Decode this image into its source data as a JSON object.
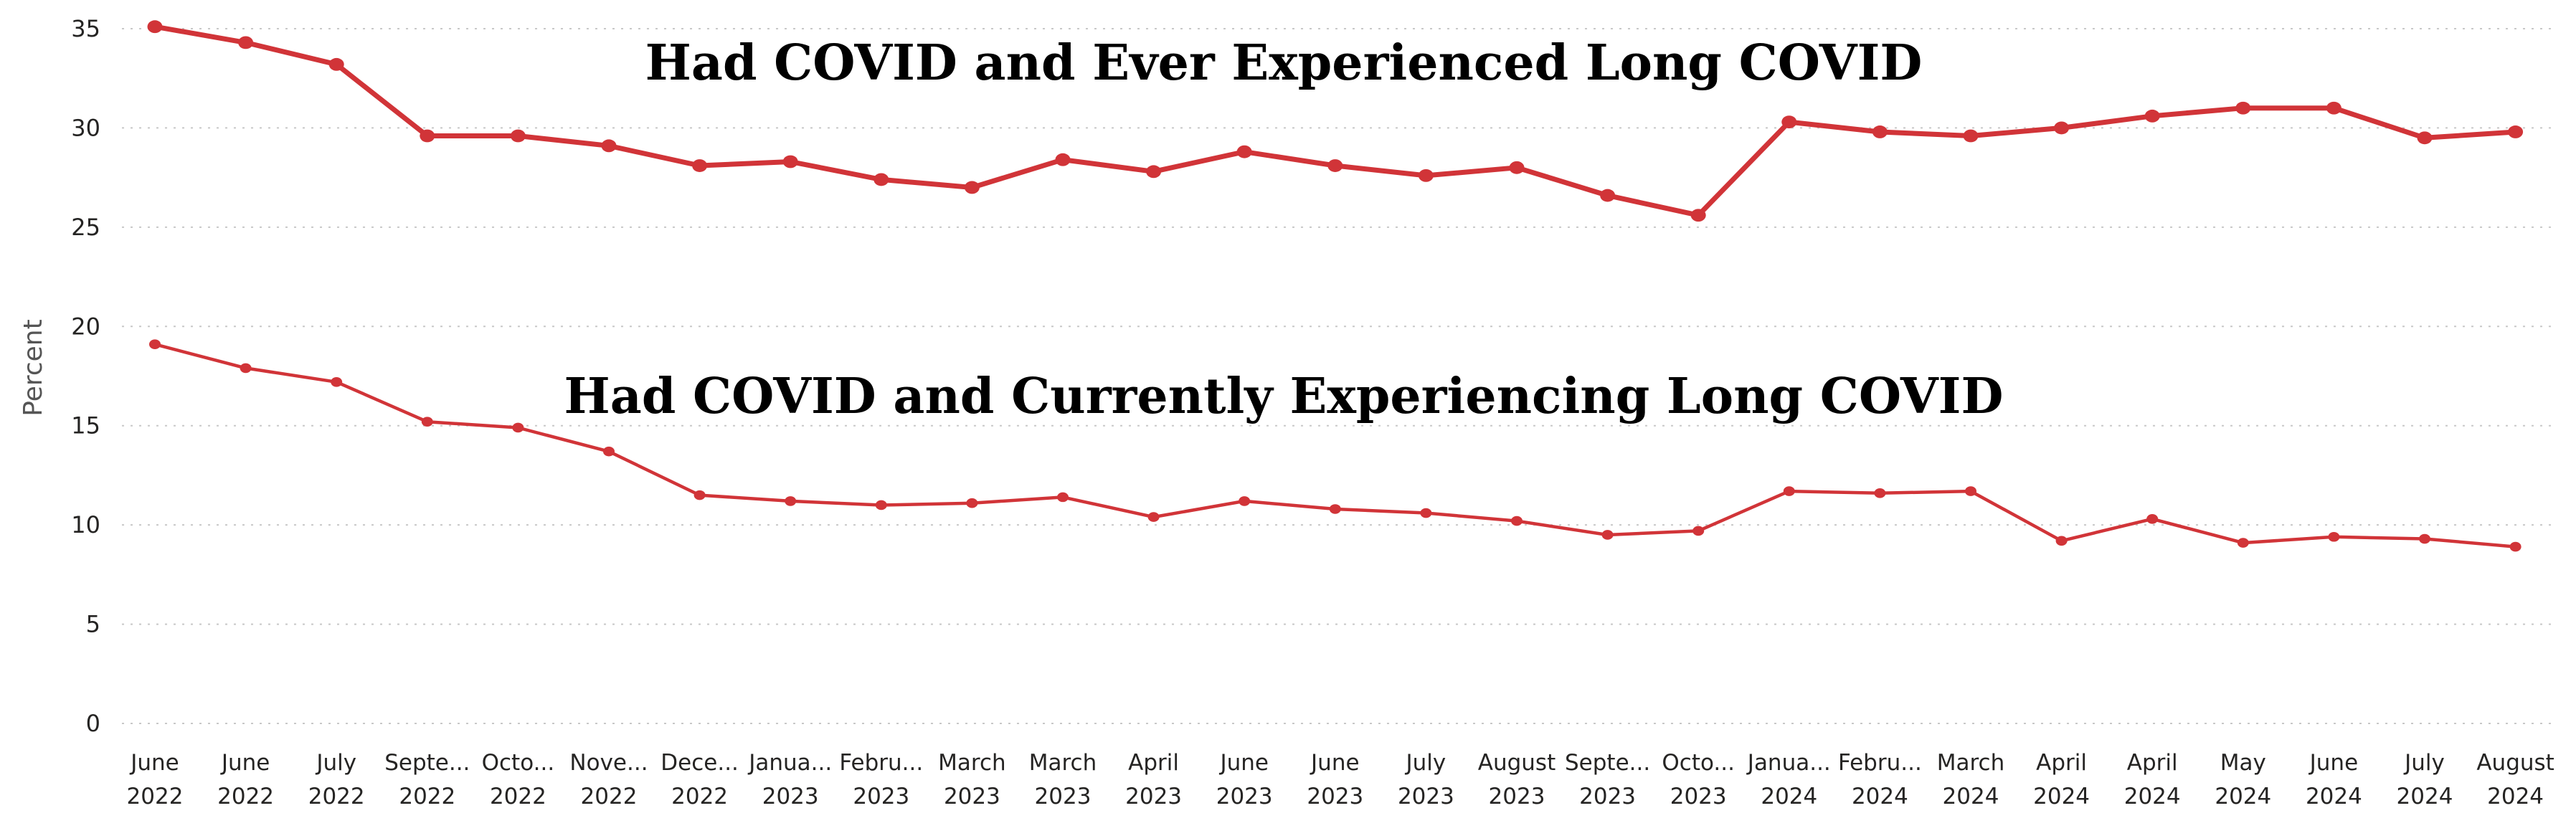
{
  "chart_data": {
    "type": "line",
    "title": "",
    "xlabel": "",
    "ylabel": "Percent",
    "ylim": [
      0,
      35
    ],
    "yticks": [
      0,
      5,
      10,
      15,
      20,
      25,
      30,
      35
    ],
    "grid": true,
    "legend": "none",
    "categories": [
      [
        "June",
        "2022"
      ],
      [
        "June",
        "2022"
      ],
      [
        "July",
        "2022"
      ],
      [
        "Septe...",
        "2022"
      ],
      [
        "Octo...",
        "2022"
      ],
      [
        "Nove...",
        "2022"
      ],
      [
        "Dece...",
        "2022"
      ],
      [
        "Janua...",
        "2023"
      ],
      [
        "Febru...",
        "2023"
      ],
      [
        "March",
        "2023"
      ],
      [
        "March",
        "2023"
      ],
      [
        "April",
        "2023"
      ],
      [
        "June",
        "2023"
      ],
      [
        "June",
        "2023"
      ],
      [
        "July",
        "2023"
      ],
      [
        "August",
        "2023"
      ],
      [
        "Septe...",
        "2023"
      ],
      [
        "Octo...",
        "2023"
      ],
      [
        "Janua...",
        "2024"
      ],
      [
        "Febru...",
        "2024"
      ],
      [
        "March",
        "2024"
      ],
      [
        "April",
        "2024"
      ],
      [
        "April",
        "2024"
      ],
      [
        "May",
        "2024"
      ],
      [
        "June",
        "2024"
      ],
      [
        "July",
        "2024"
      ],
      [
        "August",
        "2024"
      ]
    ],
    "series": [
      {
        "color": "#d13438",
        "label_text": "Had COVID and Ever Experienced Long COVID",
        "values": [
          35.1,
          34.3,
          33.2,
          29.6,
          29.6,
          29.1,
          28.1,
          28.3,
          27.4,
          27.0,
          28.4,
          27.8,
          28.8,
          28.1,
          27.6,
          28.0,
          26.6,
          25.6,
          30.3,
          29.8,
          29.6,
          30.0,
          30.6,
          31.0,
          31.0,
          29.5,
          29.8
        ]
      },
      {
        "color": "#d13438",
        "label_text": "Had COVID and Currently Experiencing Long COVID",
        "values": [
          19.1,
          17.9,
          17.2,
          15.2,
          14.9,
          13.7,
          11.5,
          11.2,
          11.0,
          11.1,
          11.4,
          10.4,
          11.2,
          10.8,
          10.6,
          10.2,
          9.5,
          9.7,
          11.7,
          11.6,
          11.7,
          9.2,
          10.3,
          9.1,
          9.4,
          9.3,
          8.9
        ]
      }
    ]
  }
}
